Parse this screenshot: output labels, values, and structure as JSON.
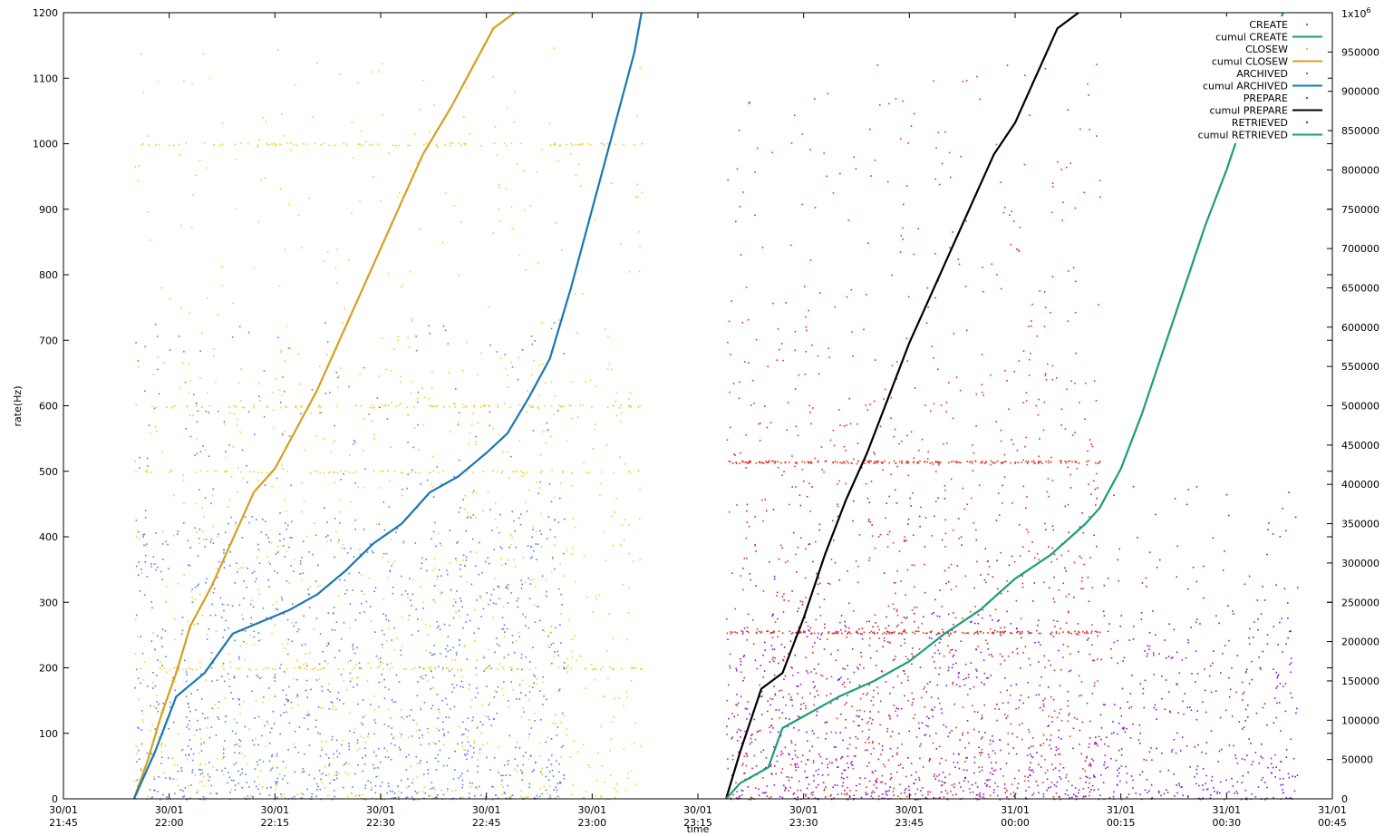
{
  "chart_data": {
    "type": "scatter",
    "xlabel": "time",
    "ylabel": "rate(Hz)",
    "y2_multiplier": "1x10",
    "y2_multiplier_exp": "6",
    "xlim": [
      "30/01 21:45",
      "31/01 00:45"
    ],
    "ylim": [
      0,
      1200
    ],
    "y2lim": [
      0,
      1000000
    ],
    "grid": false,
    "legend_placement": "top-right",
    "x_ticks": [
      {
        "date": "30/01",
        "time": "21:45"
      },
      {
        "date": "30/01",
        "time": "22:00"
      },
      {
        "date": "30/01",
        "time": "22:15"
      },
      {
        "date": "30/01",
        "time": "22:30"
      },
      {
        "date": "30/01",
        "time": "22:45"
      },
      {
        "date": "30/01",
        "time": "23:00"
      },
      {
        "date": "30/01",
        "time": "23:15"
      },
      {
        "date": "30/01",
        "time": "23:30"
      },
      {
        "date": "30/01",
        "time": "23:45"
      },
      {
        "date": "31/01",
        "time": "00:00"
      },
      {
        "date": "31/01",
        "time": "00:15"
      },
      {
        "date": "31/01",
        "time": "00:30"
      },
      {
        "date": "31/01",
        "time": "00:45"
      }
    ],
    "y_ticks": [
      "0",
      "100",
      "200",
      "300",
      "400",
      "500",
      "600",
      "700",
      "800",
      "900",
      "1000",
      "1100",
      "1200"
    ],
    "y2_ticks": [
      "0",
      "50000",
      "100000",
      "150000",
      "200000",
      "250000",
      "300000",
      "350000",
      "400000",
      "450000",
      "500000",
      "550000",
      "600000",
      "650000",
      "700000",
      "750000",
      "800000",
      "850000",
      "900000",
      "950000"
    ],
    "legend": [
      {
        "label": "CREATE",
        "kind": "points",
        "color": "#2e9e7a"
      },
      {
        "label": "cumul CREATE",
        "kind": "line",
        "color": "#1a9e77"
      },
      {
        "label": "CLOSEW",
        "kind": "points",
        "color": "#f0d020"
      },
      {
        "label": "cumul CLOSEW",
        "kind": "line",
        "color": "#d4a020"
      },
      {
        "label": "ARCHIVED",
        "kind": "points",
        "color": "#5080e0"
      },
      {
        "label": "cumul ARCHIVED",
        "kind": "line",
        "color": "#1878b0"
      },
      {
        "label": "PREPARE",
        "kind": "points",
        "color": "#e03020"
      },
      {
        "label": "cumul PREPARE",
        "kind": "line",
        "color": "#000000"
      },
      {
        "label": "RETRIEVED",
        "kind": "points",
        "color": "#9010d0"
      },
      {
        "label": "cumul RETRIEVED",
        "kind": "line",
        "color": "#1a9e77"
      }
    ],
    "cumulative_series": [
      {
        "name": "cumul CLOSEW",
        "color": "#d4a020",
        "points": [
          [
            "21:55",
            0
          ],
          [
            "21:57",
            50000
          ],
          [
            "21:59",
            110000
          ],
          [
            "22:01",
            160000
          ],
          [
            "22:03",
            220000
          ],
          [
            "22:06",
            270000
          ],
          [
            "22:09",
            330000
          ],
          [
            "22:12",
            390000
          ],
          [
            "22:15",
            420000
          ],
          [
            "22:18",
            470000
          ],
          [
            "22:21",
            520000
          ],
          [
            "22:24",
            580000
          ],
          [
            "22:27",
            640000
          ],
          [
            "22:30",
            700000
          ],
          [
            "22:33",
            760000
          ],
          [
            "22:36",
            820000
          ],
          [
            "22:40",
            880000
          ],
          [
            "22:43",
            930000
          ],
          [
            "22:46",
            980000
          ],
          [
            "22:49",
            1000000
          ]
        ]
      },
      {
        "name": "cumul ARCHIVED",
        "color": "#1878b0",
        "points": [
          [
            "21:55",
            0
          ],
          [
            "21:58",
            60000
          ],
          [
            "22:01",
            130000
          ],
          [
            "22:05",
            160000
          ],
          [
            "22:09",
            210000
          ],
          [
            "22:13",
            225000
          ],
          [
            "22:17",
            240000
          ],
          [
            "22:21",
            260000
          ],
          [
            "22:25",
            290000
          ],
          [
            "22:29",
            325000
          ],
          [
            "22:33",
            350000
          ],
          [
            "22:37",
            390000
          ],
          [
            "22:41",
            410000
          ],
          [
            "22:45",
            440000
          ],
          [
            "22:48",
            465000
          ],
          [
            "22:51",
            510000
          ],
          [
            "22:54",
            560000
          ],
          [
            "22:57",
            650000
          ],
          [
            "23:00",
            750000
          ],
          [
            "23:03",
            850000
          ],
          [
            "23:06",
            950000
          ],
          [
            "23:07",
            1000000
          ]
        ]
      },
      {
        "name": "cumul PREPARE",
        "color": "#000000",
        "points": [
          [
            "23:19",
            0
          ],
          [
            "23:21",
            60000
          ],
          [
            "23:24",
            140000
          ],
          [
            "23:27",
            160000
          ],
          [
            "23:30",
            230000
          ],
          [
            "23:33",
            310000
          ],
          [
            "23:36",
            380000
          ],
          [
            "23:39",
            440000
          ],
          [
            "23:42",
            510000
          ],
          [
            "23:45",
            580000
          ],
          [
            "23:48",
            640000
          ],
          [
            "23:51",
            700000
          ],
          [
            "23:54",
            760000
          ],
          [
            "23:57",
            820000
          ],
          [
            "00:00",
            860000
          ],
          [
            "00:03",
            920000
          ],
          [
            "00:06",
            980000
          ],
          [
            "00:09",
            1000000
          ]
        ]
      },
      {
        "name": "cumul RETRIEVED",
        "color": "#1a9e77",
        "points": [
          [
            "23:19",
            0
          ],
          [
            "23:21",
            20000
          ],
          [
            "23:25",
            40000
          ],
          [
            "23:27",
            90000
          ],
          [
            "23:30",
            105000
          ],
          [
            "23:35",
            130000
          ],
          [
            "23:40",
            150000
          ],
          [
            "23:45",
            175000
          ],
          [
            "23:50",
            210000
          ],
          [
            "23:55",
            240000
          ],
          [
            "00:00",
            280000
          ],
          [
            "00:05",
            310000
          ],
          [
            "00:10",
            350000
          ],
          [
            "00:12",
            370000
          ],
          [
            "00:15",
            420000
          ],
          [
            "00:18",
            490000
          ],
          [
            "00:21",
            570000
          ],
          [
            "00:24",
            650000
          ],
          [
            "00:27",
            730000
          ],
          [
            "00:30",
            800000
          ],
          [
            "00:33",
            880000
          ],
          [
            "00:36",
            950000
          ],
          [
            "00:38",
            1000000
          ]
        ]
      }
    ],
    "point_clouds": [
      {
        "name": "CLOSEW",
        "color": "#f0d020",
        "x_range": [
          "21:55",
          "23:07"
        ],
        "y_range": [
          0,
          1150
        ],
        "bands": [
          200,
          500,
          600,
          1000
        ]
      },
      {
        "name": "ARCHIVED",
        "color": "#5080e0",
        "x_range": [
          "21:55",
          "22:56"
        ],
        "y_range": [
          0,
          730
        ]
      },
      {
        "name": "PREPARE",
        "color": "#e03020",
        "x_range": [
          "23:19",
          "00:12"
        ],
        "y_range": [
          0,
          1140
        ],
        "bands": [
          255,
          515
        ]
      },
      {
        "name": "RETRIEVED",
        "color": "#9010d0",
        "x_range": [
          "23:19",
          "00:40"
        ],
        "y_range": [
          0,
          480
        ]
      }
    ]
  }
}
